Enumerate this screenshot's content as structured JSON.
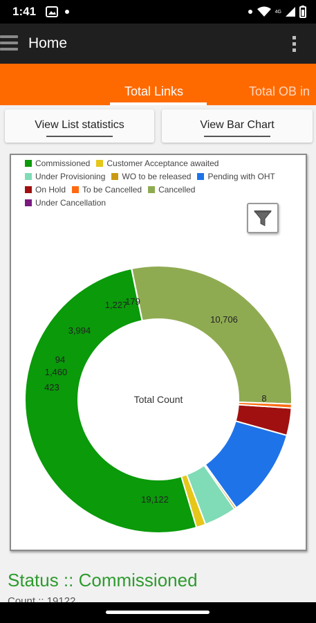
{
  "statusbar": {
    "time": "1:41",
    "network": "4G"
  },
  "appbar": {
    "title": "Home"
  },
  "tabs": [
    {
      "label": "Total Links",
      "selected": true
    },
    {
      "label": "Total OB in",
      "selected": false
    }
  ],
  "buttons": {
    "list_stats": "View List statistics",
    "bar_chart": "View Bar Chart"
  },
  "legend": [
    [
      {
        "label": "Commissioned",
        "color": "#0a9a0a"
      },
      {
        "label": "Customer Acceptance awaited",
        "color": "#e6c619"
      }
    ],
    [
      {
        "label": "Under Provisioning",
        "color": "#7fdcb6"
      },
      {
        "label": "WO to be released",
        "color": "#c99a12"
      },
      {
        "label": "Pending with OHT",
        "color": "#1e73e8"
      }
    ],
    [
      {
        "label": "On Hold",
        "color": "#a01010"
      },
      {
        "label": "To be Cancelled",
        "color": "#ff6a10"
      },
      {
        "label": "Cancelled",
        "color": "#8fab52"
      }
    ],
    [
      {
        "label": "Under Cancellation",
        "color": "#7a1a80"
      }
    ]
  ],
  "chart_data": {
    "type": "pie",
    "center_label": "Total Count",
    "slices": [
      {
        "name": "Cancelled",
        "value": 10706,
        "label": "10,706",
        "color": "#8fab52"
      },
      {
        "name": "Under Cancellation",
        "value": 8,
        "label": "8",
        "color": "#7a1a80"
      },
      {
        "name": "Commissioned",
        "value": 19122,
        "label": "19,122",
        "color": "#0a9a0a"
      },
      {
        "name": "Customer Acceptance awaited",
        "value": 423,
        "label": "423",
        "color": "#e6c619"
      },
      {
        "name": "Under Provisioning",
        "value": 1460,
        "label": "1,460",
        "color": "#7fdcb6"
      },
      {
        "name": "WO to be released",
        "value": 94,
        "label": "94",
        "color": "#c99a12"
      },
      {
        "name": "Pending with OHT",
        "value": 3994,
        "label": "3,994",
        "color": "#1e73e8"
      },
      {
        "name": "On Hold",
        "value": 1227,
        "label": "1,227",
        "color": "#a01010"
      },
      {
        "name": "To be Cancelled",
        "value": 179,
        "label": "179",
        "color": "#ff6a10"
      }
    ]
  },
  "status": {
    "text": "Status :: Commissioned",
    "count": "Count :: 19122"
  }
}
